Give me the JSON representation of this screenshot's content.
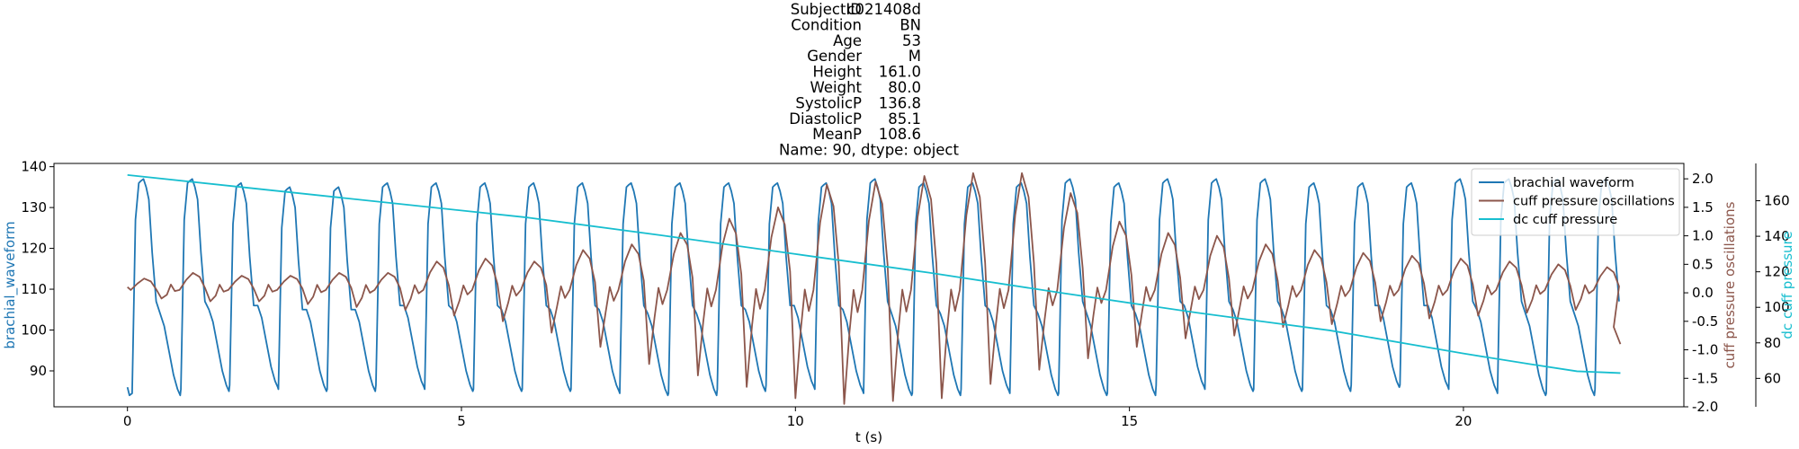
{
  "chart_data": {
    "type": "line",
    "title_lines": [
      {
        "key": "SubjectID",
        "value": "c021408d"
      },
      {
        "key": "Condition",
        "value": "BN"
      },
      {
        "key": "Age",
        "value": "53"
      },
      {
        "key": "Gender",
        "value": "M"
      },
      {
        "key": "Height",
        "value": "161.0"
      },
      {
        "key": "Weight",
        "value": "80.0"
      },
      {
        "key": "SystolicP",
        "value": "136.8"
      },
      {
        "key": "DiastolicP",
        "value": "85.1"
      },
      {
        "key": "MeanP",
        "value": "108.6"
      }
    ],
    "title_footer": "Name: 90, dtype: object",
    "xlabel": "t (s)",
    "xlim": [
      -1.1,
      23.3
    ],
    "x_ticks": [
      0,
      5,
      10,
      15,
      20
    ],
    "axes": [
      {
        "id": "brachial",
        "label": "brachial_waveform",
        "color": "#1f77b4",
        "side": "left",
        "ylim": [
          81.2,
          140.8
        ],
        "ticks": [
          90,
          100,
          110,
          120,
          130,
          140
        ]
      },
      {
        "id": "osc",
        "label": "cuff pressure oscillations",
        "color": "#8c564b",
        "side": "right",
        "ylim": [
          -2.0,
          2.27
        ],
        "ticks": [
          -2.0,
          -1.5,
          -1.0,
          -0.5,
          0.0,
          0.5,
          1.0,
          1.5,
          2.0
        ]
      },
      {
        "id": "dc",
        "label": "dc cuff pressure",
        "color": "#17becf",
        "side": "right-outer",
        "ylim": [
          44,
          181
        ],
        "ticks": [
          60,
          80,
          100,
          120,
          140,
          160
        ]
      }
    ],
    "series": [
      {
        "name": "brachial waveform",
        "axis": "brachial",
        "color": "#1f77b4",
        "beats": {
          "t_start": 0.0,
          "t_end": 22.35,
          "period": 0.73,
          "first_upstroke": 0.07,
          "systolic_peaks": [
            137,
            137,
            136,
            135,
            135,
            136,
            136,
            136,
            136,
            136,
            136,
            136,
            136,
            136,
            136,
            137,
            136,
            136,
            136,
            137,
            136,
            137,
            137,
            137,
            136,
            136,
            136,
            137,
            137,
            137,
            137
          ],
          "diastolic_troughs": [
            84,
            85,
            86,
            85,
            85,
            86,
            85,
            85,
            85,
            85,
            84,
            84,
            85,
            86,
            85,
            84,
            84,
            85,
            84,
            84,
            84,
            86,
            85,
            85,
            85,
            86,
            86,
            85,
            84,
            84,
            85
          ]
        }
      },
      {
        "name": "cuff pressure oscillations",
        "axis": "osc",
        "color": "#8c564b",
        "beats": {
          "t_start": 0.0,
          "t_end": 22.35,
          "period": 0.73,
          "peak_values": [
            0.25,
            0.35,
            0.3,
            0.3,
            0.35,
            0.35,
            0.55,
            0.6,
            0.55,
            0.75,
            0.85,
            1.05,
            1.3,
            1.5,
            1.9,
            1.95,
            2.05,
            2.1,
            2.1,
            1.75,
            1.25,
            1.05,
            1.0,
            0.85,
            0.75,
            0.7,
            0.65,
            0.6,
            0.55,
            0.5,
            0.45
          ],
          "trough_values": [
            -0.1,
            -0.15,
            -0.15,
            -0.2,
            -0.25,
            -0.3,
            -0.4,
            -0.5,
            -0.7,
            -0.95,
            -1.25,
            -1.45,
            -1.65,
            -1.85,
            -1.95,
            -1.9,
            -1.85,
            -1.6,
            -1.35,
            -1.15,
            -0.95,
            -0.8,
            -0.75,
            -0.6,
            -0.55,
            -0.5,
            -0.45,
            -0.4,
            -0.35,
            -0.3,
            -1.0
          ]
        }
      },
      {
        "name": "dc cuff pressure",
        "axis": "dc",
        "color": "#17becf",
        "points": {
          "x": [
            0,
            2,
            4,
            6,
            8,
            10,
            12,
            14,
            16,
            18,
            20,
            21,
            21.7,
            22.35
          ],
          "y": [
            174.5,
            166.5,
            158.5,
            150.5,
            140.5,
            130,
            119.5,
            108,
            97,
            87,
            74,
            68,
            64,
            63
          ]
        }
      }
    ],
    "legend": {
      "placement": "top-right",
      "entries": [
        "brachial waveform",
        "cuff pressure oscillations",
        "dc cuff pressure"
      ]
    },
    "grid": false
  }
}
